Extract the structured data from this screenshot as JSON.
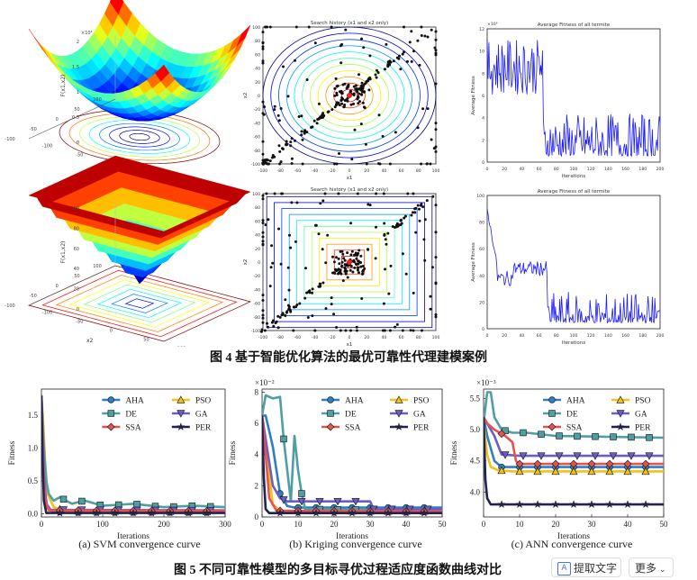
{
  "figure4": {
    "caption": "图 4  基于智能优化算法的最优可靠性代理建模案例",
    "surface": {
      "xlabel": "x1",
      "ylabel": "x2",
      "zlabel": "F(x1,x2)",
      "top_exponent": "×10⁴",
      "ticks_z_top": [
        "2",
        "1.5",
        "1",
        "0.5",
        "0"
      ],
      "ticks_z_bottom": [
        "100",
        "80",
        "60",
        "40",
        "20",
        "0"
      ],
      "ticks_x": [
        "-100",
        "-50",
        "0",
        "50",
        "100"
      ],
      "ticks_y": [
        "100",
        "50",
        "0",
        "-50",
        "-100"
      ]
    },
    "history": {
      "title": "Search history (x1 and x2 only)",
      "xlabel": "x1",
      "ylabel": "x2",
      "ticks": [
        "-100",
        "-80",
        "-60",
        "-40",
        "-20",
        "0",
        "20",
        "40",
        "60",
        "80",
        "100"
      ]
    },
    "fitness": {
      "title": "Average Fitness of all termite",
      "xlabel": "Iterations",
      "ylabel": "Average Fitness",
      "top_exponent": "×10⁴",
      "top_yticks": [
        "12",
        "10",
        "8",
        "6",
        "4",
        "2",
        "0"
      ],
      "bottom_yticks": [
        "100",
        "80",
        "60",
        "40",
        "20",
        "0"
      ],
      "xticks": [
        "0",
        "20",
        "40",
        "60",
        "80",
        "100",
        "120",
        "140",
        "160",
        "180",
        "200"
      ]
    }
  },
  "figure5": {
    "caption": "图 5  不同可靠性模型的多目标寻优过程适应度函数曲线对比",
    "ylabel": "Fitness",
    "xlabel": "Iterations",
    "legend": [
      {
        "name": "AHA",
        "color": "#2e7fc2",
        "marker": "circle"
      },
      {
        "name": "PSO",
        "color": "#f2c11c",
        "marker": "triangle-up"
      },
      {
        "name": "DE",
        "color": "#4e9fa3",
        "marker": "square"
      },
      {
        "name": "GA",
        "color": "#6d5cc4",
        "marker": "triangle-down"
      },
      {
        "name": "SSA",
        "color": "#e8524e",
        "marker": "diamond"
      },
      {
        "name": "PER",
        "color": "#222255",
        "marker": "star"
      }
    ],
    "subplots": [
      {
        "caption": "(a) SVM convergence curve",
        "chart_data": {
          "type": "line",
          "title": "SVM convergence curve",
          "xlabel": "Iterations",
          "ylabel": "Fitness",
          "xlim": [
            0,
            300
          ],
          "ylim": [
            -0.05,
            1.9
          ],
          "xticks": [
            "0",
            "100",
            "200",
            "300"
          ],
          "yticks": [
            "0.0",
            "0.5",
            "1.0",
            "1.5"
          ],
          "exponent": "",
          "series": [
            {
              "name": "AHA",
              "x": [
                0,
                3,
                6,
                10,
                20,
                40,
                300
              ],
              "y": [
                1.8,
                0.9,
                0.3,
                0.08,
                0.03,
                0.02,
                0.02
              ]
            },
            {
              "name": "PSO",
              "x": [
                0,
                3,
                6,
                10,
                20,
                40,
                300
              ],
              "y": [
                1.8,
                1.4,
                0.8,
                0.3,
                0.1,
                0.04,
                0.03
              ]
            },
            {
              "name": "DE",
              "x": [
                0,
                4,
                8,
                12,
                20,
                30,
                50,
                70,
                100,
                150,
                200,
                250,
                300
              ],
              "y": [
                1.8,
                1.0,
                0.5,
                0.3,
                0.2,
                0.25,
                0.15,
                0.2,
                0.12,
                0.15,
                0.1,
                0.12,
                0.1
              ]
            },
            {
              "name": "GA",
              "x": [
                0,
                4,
                8,
                15,
                300
              ],
              "y": [
                1.8,
                0.6,
                0.15,
                0.06,
                0.05
              ]
            },
            {
              "name": "SSA",
              "x": [
                0,
                3,
                6,
                12,
                300
              ],
              "y": [
                1.8,
                0.7,
                0.2,
                0.05,
                0.04
              ]
            },
            {
              "name": "PER",
              "x": [
                0,
                2,
                4,
                8,
                300
              ],
              "y": [
                1.8,
                0.8,
                0.2,
                0.01,
                0.01
              ]
            }
          ]
        }
      },
      {
        "caption": "(b) Kriging convergence curve",
        "chart_data": {
          "type": "line",
          "title": "Kriging convergence curve",
          "xlabel": "Iterations",
          "ylabel": "Fitness",
          "xlim": [
            0,
            50
          ],
          "ylim": [
            0,
            8.2
          ],
          "xticks": [
            "0",
            "10",
            "20",
            "30",
            "40",
            "50"
          ],
          "yticks": [
            "0",
            "2",
            "4",
            "6",
            "8"
          ],
          "exponent": "×10⁻²",
          "series": [
            {
              "name": "AHA",
              "x": [
                0,
                1,
                3,
                5,
                7,
                9,
                50
              ],
              "y": [
                6.5,
                6.5,
                4.5,
                1.5,
                0.7,
                0.6,
                0.6
              ]
            },
            {
              "name": "PSO",
              "x": [
                0,
                1,
                3,
                5,
                50
              ],
              "y": [
                6.5,
                4.5,
                0.8,
                0.4,
                0.35
              ]
            },
            {
              "name": "DE",
              "x": [
                0,
                1,
                3,
                5,
                6,
                8,
                9,
                10,
                11,
                12,
                50
              ],
              "y": [
                6.5,
                7.8,
                7.6,
                7.7,
                5,
                1,
                5.2,
                3,
                1.5,
                0.5,
                0.4
              ]
            },
            {
              "name": "GA",
              "x": [
                0,
                1,
                3,
                5,
                7,
                30,
                31,
                50
              ],
              "y": [
                6.5,
                5,
                2,
                1.2,
                1,
                1,
                0.5,
                0.5
              ]
            },
            {
              "name": "SSA",
              "x": [
                0,
                1,
                2,
                4,
                50
              ],
              "y": [
                6.5,
                4,
                1.2,
                0.4,
                0.35
              ]
            },
            {
              "name": "PER",
              "x": [
                0,
                0.5,
                1,
                2,
                50
              ],
              "y": [
                6.5,
                2.5,
                0.5,
                0.25,
                0.25
              ]
            }
          ]
        }
      },
      {
        "caption": "(c) ANN convergence curve",
        "chart_data": {
          "type": "line",
          "title": "ANN convergence curve",
          "xlabel": "Iterations",
          "ylabel": "Fitness",
          "xlim": [
            0,
            50
          ],
          "ylim": [
            3.6,
            5.65
          ],
          "xticks": [
            "0",
            "10",
            "20",
            "30",
            "40",
            "50"
          ],
          "yticks": [
            "4.0",
            "4.5",
            "5.0",
            "5.5"
          ],
          "exponent": "×10⁻³",
          "series": [
            {
              "name": "AHA",
              "x": [
                0,
                1,
                3,
                5,
                7,
                9,
                50
              ],
              "y": [
                5.2,
                4.9,
                4.5,
                4.4,
                4.4,
                4.4,
                4.4
              ]
            },
            {
              "name": "PSO",
              "x": [
                0,
                1,
                2,
                4,
                8,
                50
              ],
              "y": [
                5.1,
                4.6,
                4.4,
                4.35,
                4.33,
                4.33
              ]
            },
            {
              "name": "DE",
              "x": [
                0,
                1,
                2,
                3,
                5,
                8,
                12,
                20,
                50
              ],
              "y": [
                5.1,
                5.6,
                5.6,
                5.2,
                5.0,
                4.95,
                4.95,
                4.9,
                4.87
              ]
            },
            {
              "name": "GA",
              "x": [
                0,
                1,
                3,
                5,
                10,
                50
              ],
              "y": [
                5.2,
                5.1,
                4.9,
                4.6,
                4.58,
                4.58
              ]
            },
            {
              "name": "SSA",
              "x": [
                0,
                1,
                3,
                6,
                8,
                9,
                10,
                11,
                50
              ],
              "y": [
                5.2,
                5.1,
                5.0,
                4.9,
                4.8,
                4.5,
                4.45,
                4.45,
                4.45
              ]
            },
            {
              "name": "PER",
              "x": [
                0,
                0.5,
                1,
                2,
                50
              ],
              "y": [
                5.2,
                4.2,
                3.9,
                3.8,
                3.8
              ]
            }
          ]
        }
      }
    ]
  },
  "toolbar": {
    "extract_label": "提取文字",
    "more_label": "更多"
  }
}
